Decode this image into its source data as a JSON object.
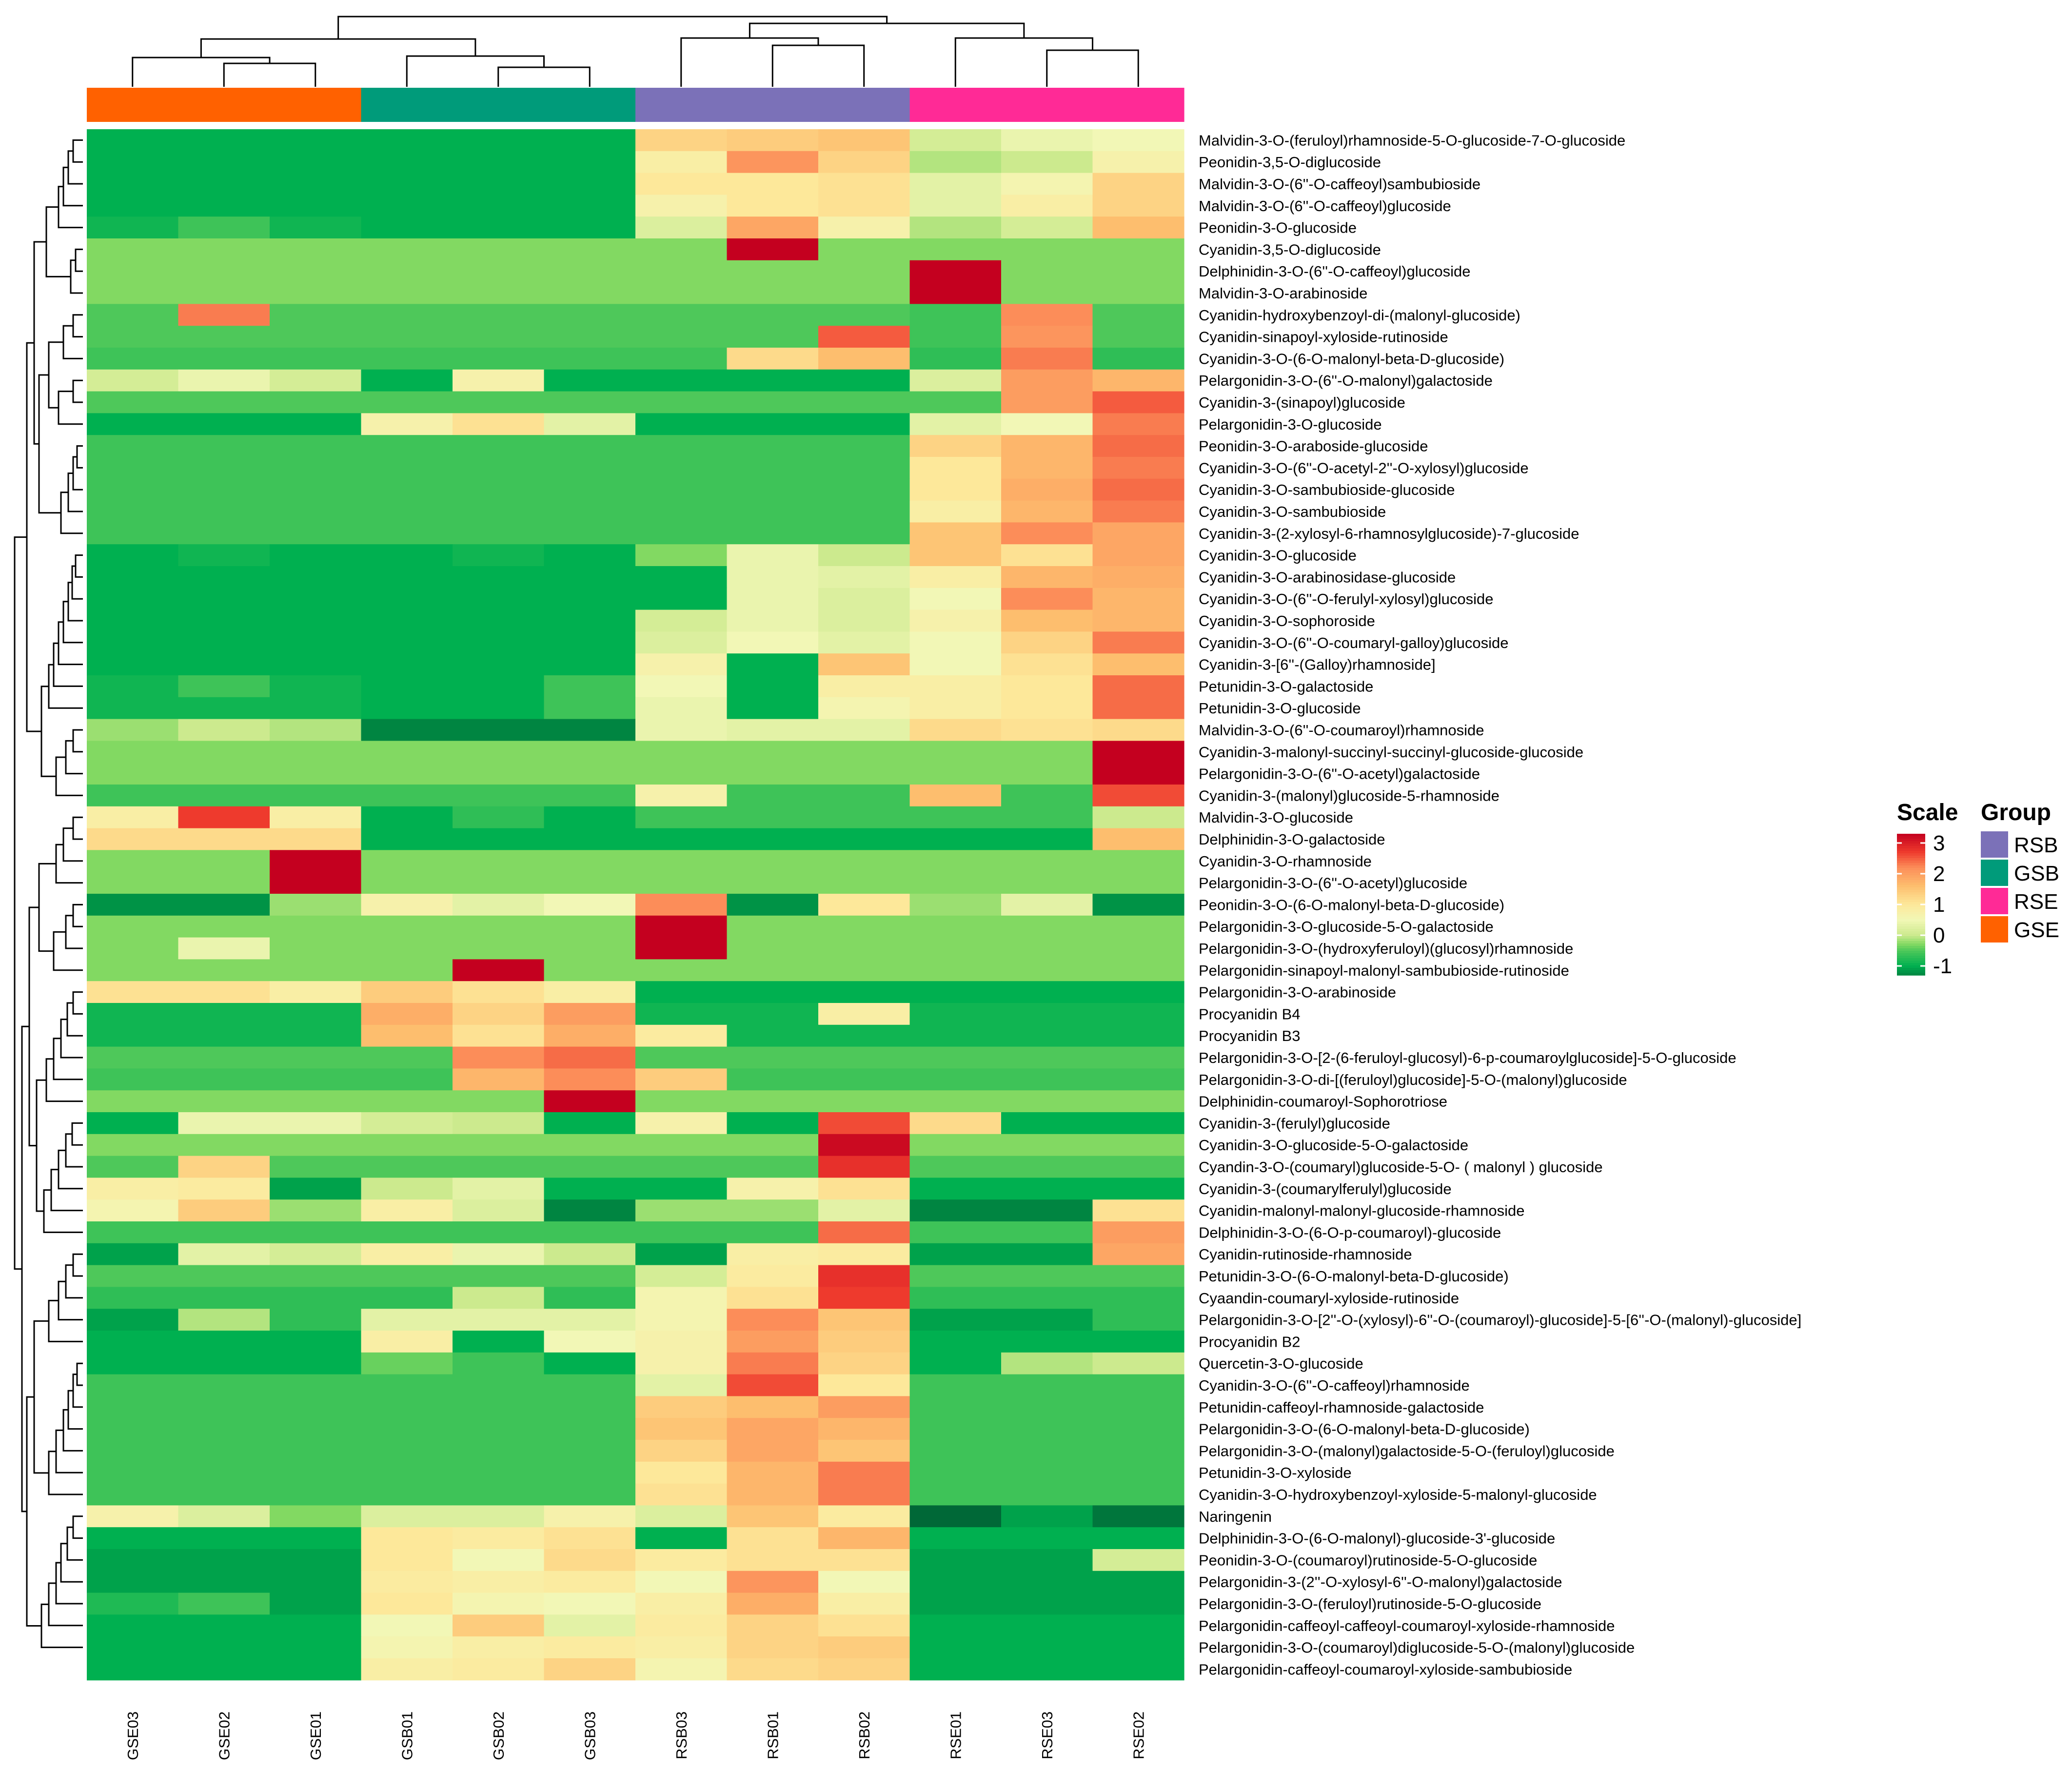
{
  "chart_data": {
    "type": "heatmap",
    "title": "",
    "columns": [
      "GSE03",
      "GSE02",
      "GSE01",
      "GSB01",
      "GSB02",
      "GSB03",
      "RSB03",
      "RSB01",
      "RSB02",
      "RSE01",
      "RSE03",
      "RSE02"
    ],
    "column_groups": [
      "GSE",
      "GSE",
      "GSE",
      "GSB",
      "GSB",
      "GSB",
      "RSB",
      "RSB",
      "RSB",
      "RSE",
      "RSE",
      "RSE"
    ],
    "rows": [
      "Malvidin-3-O-(feruloyl)rhamnoside-5-O-glucoside-7-O-glucoside",
      "Peonidin-3,5-O-diglucoside",
      "Malvidin-3-O-(6''-O-caffeoyl)sambubioside",
      "Malvidin-3-O-(6''-O-caffeoyl)glucoside",
      "Peonidin-3-O-glucoside",
      "Cyanidin-3,5-O-diglucoside",
      "Delphinidin-3-O-(6''-O-caffeoyl)glucoside",
      "Malvidin-3-O-arabinoside",
      "Cyanidin-hydroxybenzoyl-di-(malonyl-glucoside)",
      "Cyanidin-sinapoyl-xyloside-rutinoside",
      "Cyanidin-3-O-(6-O-malonyl-beta-D-glucoside)",
      "Pelargonidin-3-O-(6''-O-malonyl)galactoside",
      "Cyanidin-3-(sinapoyl)glucoside",
      "Pelargonidin-3-O-glucoside",
      "Peonidin-3-O-araboside-glucoside",
      "Cyanidin-3-O-(6''-O-acetyl-2''-O-xylosyl)glucoside",
      "Cyanidin-3-O-sambubioside-glucoside",
      "Cyanidin-3-O-sambubioside",
      "Cyanidin-3-(2-xylosyl-6-rhamnosylglucoside)-7-glucoside",
      "Cyanidin-3-O-glucoside",
      "Cyanidin-3-O-arabinosidase-glucoside",
      "Cyanidin-3-O-(6''-O-ferulyl-xylosyl)glucoside",
      "Cyanidin-3-O-sophoroside",
      "Cyanidin-3-O-(6''-O-coumaryl-galloy)glucoside",
      "Cyanidin-3-[6''-(Galloy)rhamnoside]",
      "Petunidin-3-O-galactoside",
      "Petunidin-3-O-glucoside",
      "Malvidin-3-O-(6''-O-coumaroyl)rhamnoside",
      "Cyanidin-3-malonyl-succinyl-succinyl-glucoside-glucoside",
      "Pelargonidin-3-O-(6''-O-acetyl)galactoside",
      "Cyanidin-3-(malonyl)glucoside-5-rhamnoside",
      "Malvidin-3-O-glucoside",
      "Delphinidin-3-O-galactoside",
      "Cyanidin-3-O-rhamnoside",
      "Pelargonidin-3-O-(6''-O-acetyl)glucoside",
      "Peonidin-3-O-(6-O-malonyl-beta-D-glucoside)",
      "Pelargonidin-3-O-glucoside-5-O-galactoside",
      "Pelargonidin-3-O-(hydroxyferuloyl)(glucosyl)rhamnoside",
      "Pelargonidin-sinapoyl-malonyl-sambubioside-rutinoside",
      "Pelargonidin-3-O-arabinoside",
      "Procyanidin B4",
      "Procyanidin B3",
      "Pelargonidin-3-O-[2-(6-feruloyl-glucosyl)-6-p-coumaroylglucoside]-5-O-glucoside",
      "Pelargonidin-3-O-di-[(feruloyl)glucoside]-5-O-(malonyl)glucoside",
      "Delphinidin-coumaroyl-Sophorotriose",
      "Cyanidin-3-(ferulyl)glucoside",
      "Cyanidin-3-O-glucoside-5-O-galactoside",
      "Cyandin-3-O-(coumaryl)glucoside-5-O- ( malonyl ) glucoside",
      "Cyanidin-3-(coumarylferulyl)glucoside",
      "Cyanidin-malonyl-malonyl-glucoside-rhamnoside",
      "Delphinidin-3-O-(6-O-p-coumaroyl)-glucoside",
      "Cyanidin-rutinoside-rhamnoside",
      "Petunidin-3-O-(6-O-malonyl-beta-D-glucoside)",
      "Cyaandin-coumaryl-xyloside-rutinoside",
      "Pelargonidin-3-O-[2''-O-(xylosyl)-6''-O-(coumaroyl)-glucoside]-5-[6''-O-(malonyl)-glucoside]",
      "Procyanidin B2",
      "Quercetin-3-O-glucoside",
      "Cyanidin-3-O-(6''-O-caffeoyl)rhamnoside",
      "Petunidin-caffeoyl-rhamnoside-galactoside",
      "Pelargonidin-3-O-(6-O-malonyl-beta-D-glucoside)",
      "Pelargonidin-3-O-(malonyl)galactoside-5-O-(feruloyl)glucoside",
      "Petunidin-3-O-xyloside",
      "Cyanidin-3-O-hydroxybenzoyl-xyloside-5-malonyl-glucoside",
      "Naringenin",
      "Delphinidin-3-O-(6-O-malonyl)-glucoside-3'-glucoside",
      "Peonidin-3-O-(coumaroyl)rutinoside-5-O-glucoside",
      "Pelargonidin-3-(2''-O-xylosyl-6''-O-malonyl)galactoside",
      "Pelargonidin-3-O-(feruloyl)rutinoside-5-O-glucoside",
      "Pelargonidin-caffeoyl-caffeoyl-coumaroyl-xyloside-rhamnoside",
      "Pelargonidin-3-O-(coumaroyl)diglucoside-5-O-(malonyl)glucoside",
      "Pelargonidin-caffeoyl-coumaroyl-xyloside-sambubioside"
    ],
    "values": [
      [
        -1.0,
        -1.0,
        -1.0,
        -1.0,
        -1.0,
        -1.0,
        1.3,
        1.4,
        1.5,
        0.1,
        0.4,
        0.5
      ],
      [
        -1.0,
        -1.0,
        -1.0,
        -1.0,
        -1.0,
        -1.0,
        0.8,
        2.1,
        1.3,
        -0.1,
        0.0,
        0.7
      ],
      [
        -1.0,
        -1.0,
        -1.0,
        -1.0,
        -1.0,
        -1.0,
        1.0,
        1.0,
        1.1,
        0.3,
        0.6,
        1.3
      ],
      [
        -1.0,
        -1.0,
        -1.0,
        -1.0,
        -1.0,
        -1.0,
        0.7,
        1.0,
        1.1,
        0.3,
        0.8,
        1.3
      ],
      [
        -0.9,
        -0.6,
        -0.9,
        -1.0,
        -1.0,
        -1.0,
        0.2,
        1.9,
        0.7,
        -0.1,
        0.1,
        1.6
      ],
      [
        -0.3,
        -0.3,
        -0.3,
        -0.3,
        -0.3,
        -0.3,
        -0.3,
        3.3,
        -0.3,
        -0.3,
        -0.3,
        -0.3
      ],
      [
        -0.3,
        -0.3,
        -0.3,
        -0.3,
        -0.3,
        -0.3,
        -0.3,
        -0.3,
        -0.3,
        3.3,
        -0.3,
        -0.3
      ],
      [
        -0.3,
        -0.3,
        -0.3,
        -0.3,
        -0.3,
        -0.3,
        -0.3,
        -0.3,
        -0.3,
        3.3,
        -0.3,
        -0.3
      ],
      [
        -0.5,
        2.3,
        -0.5,
        -0.5,
        -0.5,
        -0.5,
        -0.5,
        -0.5,
        -0.5,
        -0.6,
        2.2,
        -0.5
      ],
      [
        -0.5,
        -0.5,
        -0.5,
        -0.5,
        -0.5,
        -0.5,
        -0.5,
        -0.5,
        2.5,
        -0.6,
        2.1,
        -0.5
      ],
      [
        -0.6,
        -0.6,
        -0.6,
        -0.6,
        -0.6,
        -0.6,
        -0.6,
        1.2,
        1.6,
        -0.7,
        2.3,
        -0.7
      ],
      [
        0.1,
        0.4,
        0.1,
        -1.0,
        0.7,
        -1.0,
        -1.0,
        -1.0,
        -1.0,
        0.2,
        2.0,
        1.7
      ],
      [
        -0.5,
        -0.5,
        -0.5,
        -0.5,
        -0.5,
        -0.5,
        -0.5,
        -0.5,
        -0.5,
        -0.5,
        2.0,
        2.5
      ],
      [
        -1.0,
        -1.0,
        -1.0,
        0.7,
        1.1,
        0.3,
        -1.0,
        -1.0,
        -1.0,
        0.3,
        0.5,
        2.3
      ],
      [
        -0.6,
        -0.6,
        -0.6,
        -0.6,
        -0.6,
        -0.6,
        -0.6,
        -0.6,
        -0.6,
        1.3,
        1.7,
        2.4
      ],
      [
        -0.6,
        -0.6,
        -0.6,
        -0.6,
        -0.6,
        -0.6,
        -0.6,
        -0.6,
        -0.6,
        1.0,
        1.7,
        2.3
      ],
      [
        -0.6,
        -0.6,
        -0.6,
        -0.6,
        -0.6,
        -0.6,
        -0.6,
        -0.6,
        -0.6,
        1.0,
        1.8,
        2.4
      ],
      [
        -0.6,
        -0.6,
        -0.6,
        -0.6,
        -0.6,
        -0.6,
        -0.6,
        -0.6,
        -0.6,
        0.8,
        1.7,
        2.3
      ],
      [
        -0.6,
        -0.6,
        -0.6,
        -0.6,
        -0.6,
        -0.6,
        -0.6,
        -0.6,
        -0.6,
        1.5,
        2.2,
        1.9
      ],
      [
        -1.0,
        -0.9,
        -1.0,
        -1.0,
        -0.9,
        -1.0,
        -0.3,
        0.4,
        0.0,
        1.5,
        1.1,
        1.9
      ],
      [
        -1.0,
        -1.0,
        -1.0,
        -1.0,
        -1.0,
        -1.0,
        -1.0,
        0.4,
        0.3,
        0.8,
        1.7,
        1.8
      ],
      [
        -1.0,
        -1.0,
        -1.0,
        -1.0,
        -1.0,
        -1.0,
        -1.0,
        0.4,
        0.2,
        0.5,
        2.2,
        1.7
      ],
      [
        -1.0,
        -1.0,
        -1.0,
        -1.0,
        -1.0,
        -1.0,
        0.1,
        0.4,
        0.2,
        0.7,
        1.6,
        1.7
      ],
      [
        -1.0,
        -1.0,
        -1.0,
        -1.0,
        -1.0,
        -1.0,
        0.2,
        0.5,
        0.3,
        0.5,
        1.3,
        2.3
      ],
      [
        -1.0,
        -1.0,
        -1.0,
        -1.0,
        -1.0,
        -1.0,
        0.7,
        -1.0,
        1.5,
        0.5,
        1.1,
        1.6
      ],
      [
        -0.9,
        -0.6,
        -0.9,
        -1.0,
        -1.0,
        -0.6,
        0.5,
        -1.0,
        0.8,
        0.8,
        1.0,
        2.4
      ],
      [
        -0.9,
        -0.9,
        -0.9,
        -1.0,
        -1.0,
        -0.6,
        0.4,
        -1.0,
        0.6,
        0.8,
        1.0,
        2.4
      ],
      [
        -0.2,
        0.0,
        -0.1,
        -1.3,
        -1.3,
        -1.3,
        0.4,
        0.3,
        0.3,
        1.2,
        1.1,
        1.2
      ],
      [
        -0.3,
        -0.3,
        -0.3,
        -0.3,
        -0.3,
        -0.3,
        -0.3,
        -0.3,
        -0.3,
        -0.3,
        -0.3,
        3.3
      ],
      [
        -0.3,
        -0.3,
        -0.3,
        -0.3,
        -0.3,
        -0.3,
        -0.3,
        -0.3,
        -0.3,
        -0.3,
        -0.3,
        3.3
      ],
      [
        -0.6,
        -0.6,
        -0.6,
        -0.6,
        -0.6,
        -0.6,
        0.7,
        -0.6,
        -0.6,
        1.6,
        -0.6,
        2.6
      ],
      [
        0.8,
        2.7,
        0.8,
        -1.0,
        -0.7,
        -1.0,
        -0.6,
        -0.6,
        -0.6,
        -0.6,
        -0.6,
        0.0
      ],
      [
        1.2,
        1.2,
        1.2,
        -1.0,
        -1.0,
        -1.0,
        -1.0,
        -1.0,
        -1.0,
        -1.0,
        -1.0,
        1.6
      ],
      [
        -0.3,
        -0.3,
        3.3,
        -0.3,
        -0.3,
        -0.3,
        -0.3,
        -0.3,
        -0.3,
        -0.3,
        -0.3,
        -0.3
      ],
      [
        -0.3,
        -0.3,
        3.3,
        -0.3,
        -0.3,
        -0.3,
        -0.3,
        -0.3,
        -0.3,
        -0.3,
        -0.3,
        -0.3
      ],
      [
        -1.2,
        -1.2,
        -0.2,
        0.7,
        0.3,
        0.5,
        2.2,
        -1.2,
        1.0,
        -0.2,
        0.3,
        -1.2
      ],
      [
        -0.3,
        -0.3,
        -0.3,
        -0.3,
        -0.3,
        -0.3,
        3.3,
        -0.3,
        -0.3,
        -0.3,
        -0.3,
        -0.3
      ],
      [
        -0.3,
        0.4,
        -0.3,
        -0.3,
        -0.3,
        -0.3,
        3.3,
        -0.3,
        -0.3,
        -0.3,
        -0.3,
        -0.3
      ],
      [
        -0.3,
        -0.3,
        -0.3,
        -0.3,
        3.3,
        -0.3,
        -0.3,
        -0.3,
        -0.3,
        -0.3,
        -0.3,
        -0.3
      ],
      [
        1.1,
        1.1,
        0.8,
        1.4,
        1.1,
        0.8,
        -1.0,
        -1.0,
        -1.0,
        -1.0,
        -1.0,
        -1.0
      ],
      [
        -0.9,
        -0.9,
        -0.9,
        1.8,
        1.3,
        2.0,
        -0.9,
        -0.9,
        0.8,
        -0.9,
        -0.9,
        -0.9
      ],
      [
        -0.9,
        -0.9,
        -0.9,
        1.6,
        1.1,
        1.8,
        0.9,
        -0.9,
        -0.9,
        -0.9,
        -0.9,
        -0.9
      ],
      [
        -0.5,
        -0.5,
        -0.5,
        -0.5,
        2.2,
        2.4,
        -0.5,
        -0.5,
        -0.5,
        -0.5,
        -0.5,
        -0.5
      ],
      [
        -0.6,
        -0.6,
        -0.6,
        -0.6,
        1.7,
        2.2,
        1.4,
        -0.6,
        -0.6,
        -0.6,
        -0.6,
        -0.6
      ],
      [
        -0.3,
        -0.3,
        -0.3,
        -0.3,
        -0.3,
        3.3,
        -0.3,
        -0.3,
        -0.3,
        -0.3,
        -0.3,
        -0.3
      ],
      [
        -1.0,
        0.4,
        0.4,
        0.1,
        0.0,
        -1.0,
        0.7,
        -1.0,
        2.6,
        1.2,
        -1.0,
        -1.0
      ],
      [
        -0.3,
        -0.3,
        -0.3,
        -0.3,
        -0.3,
        -0.3,
        -0.3,
        -0.3,
        3.2,
        -0.3,
        -0.3,
        -0.3
      ],
      [
        -0.5,
        1.3,
        -0.5,
        -0.5,
        -0.5,
        -0.5,
        -0.5,
        -0.5,
        2.8,
        -0.5,
        -0.5,
        -0.5
      ],
      [
        0.8,
        0.9,
        -1.1,
        0.0,
        0.3,
        -1.0,
        -1.0,
        0.7,
        1.1,
        -1.0,
        -1.0,
        -1.0
      ],
      [
        0.6,
        1.4,
        -0.2,
        0.8,
        0.2,
        -1.3,
        -0.2,
        -0.2,
        0.3,
        -1.3,
        -1.3,
        1.1
      ],
      [
        -0.6,
        -0.6,
        -0.6,
        -0.6,
        -0.6,
        -0.6,
        -0.6,
        -0.6,
        2.4,
        -0.6,
        -0.6,
        2.0
      ],
      [
        -1.1,
        0.3,
        0.1,
        0.8,
        0.4,
        0.0,
        -1.1,
        0.8,
        0.9,
        -1.1,
        -1.1,
        1.9
      ],
      [
        -0.5,
        -0.5,
        -0.5,
        -0.5,
        -0.5,
        -0.5,
        0.1,
        0.9,
        2.8,
        -0.5,
        -0.5,
        -0.5
      ],
      [
        -0.7,
        -0.7,
        -0.7,
        -0.7,
        0.0,
        -0.7,
        0.6,
        1.1,
        2.7,
        -0.7,
        -0.7,
        -0.7
      ],
      [
        -1.1,
        -0.1,
        -0.7,
        0.3,
        0.3,
        0.3,
        0.6,
        2.2,
        1.5,
        -1.1,
        -1.1,
        -0.7
      ],
      [
        -1.0,
        -1.0,
        -1.0,
        0.8,
        -1.0,
        0.5,
        0.7,
        2.0,
        1.4,
        -1.0,
        -1.0,
        -1.0
      ],
      [
        -1.0,
        -1.0,
        -1.0,
        -0.4,
        -0.6,
        -1.0,
        0.7,
        2.3,
        1.3,
        -1.0,
        -0.1,
        0.0
      ],
      [
        -0.6,
        -0.6,
        -0.6,
        -0.6,
        -0.6,
        -0.6,
        0.3,
        2.6,
        1.0,
        -0.6,
        -0.6,
        -0.6
      ],
      [
        -0.6,
        -0.6,
        -0.6,
        -0.6,
        -0.6,
        -0.6,
        1.4,
        1.6,
        2.0,
        -0.6,
        -0.6,
        -0.6
      ],
      [
        -0.6,
        -0.6,
        -0.6,
        -0.6,
        -0.6,
        -0.6,
        1.5,
        1.9,
        1.7,
        -0.6,
        -0.6,
        -0.6
      ],
      [
        -0.6,
        -0.6,
        -0.6,
        -0.6,
        -0.6,
        -0.6,
        1.3,
        1.9,
        1.5,
        -0.6,
        -0.6,
        -0.6
      ],
      [
        -0.6,
        -0.6,
        -0.6,
        -0.6,
        -0.6,
        -0.6,
        1.0,
        1.7,
        2.3,
        -0.6,
        -0.6,
        -0.6
      ],
      [
        -0.6,
        -0.6,
        -0.6,
        -0.6,
        -0.6,
        -0.6,
        1.1,
        1.7,
        2.3,
        -0.6,
        -0.6,
        -0.6
      ],
      [
        0.7,
        0.2,
        -0.3,
        0.2,
        0.2,
        0.7,
        0.2,
        1.5,
        0.9,
        -1.5,
        -1.1,
        -1.4
      ],
      [
        -1.0,
        -1.0,
        -1.0,
        1.0,
        0.9,
        1.1,
        -1.0,
        1.1,
        1.7,
        -1.0,
        -1.0,
        -1.0
      ],
      [
        -1.1,
        -1.1,
        -1.1,
        1.0,
        0.5,
        1.2,
        0.9,
        1.1,
        1.1,
        -1.1,
        -1.1,
        0.1
      ],
      [
        -1.1,
        -1.1,
        -1.1,
        0.9,
        0.8,
        0.9,
        0.5,
        2.1,
        0.5,
        -1.1,
        -1.1,
        -1.1
      ],
      [
        -0.8,
        -0.6,
        -1.1,
        1.0,
        0.6,
        0.5,
        0.8,
        1.8,
        0.8,
        -1.1,
        -1.1,
        -1.1
      ],
      [
        -1.0,
        -1.0,
        -1.0,
        0.5,
        1.4,
        0.3,
        0.9,
        1.3,
        1.1,
        -1.0,
        -1.0,
        -1.0
      ],
      [
        -1.0,
        -1.0,
        -1.0,
        0.6,
        0.8,
        0.9,
        0.8,
        1.3,
        1.4,
        -1.0,
        -1.0,
        -1.0
      ],
      [
        -1.0,
        -1.0,
        -1.0,
        0.8,
        0.9,
        1.3,
        0.6,
        1.2,
        1.3,
        -1.0,
        -1.0,
        -1.0
      ]
    ],
    "color_scale": {
      "stops": [
        {
          "value": -1.5,
          "color": "#006837"
        },
        {
          "value": -1.0,
          "color": "#00b050"
        },
        {
          "value": -0.5,
          "color": "#4ec85a"
        },
        {
          "value": -0.3,
          "color": "#82d962"
        },
        {
          "value": 0.0,
          "color": "#ccea8e"
        },
        {
          "value": 0.5,
          "color": "#f2f7b6"
        },
        {
          "value": 1.0,
          "color": "#fde89a"
        },
        {
          "value": 1.6,
          "color": "#fdbe6e"
        },
        {
          "value": 2.2,
          "color": "#fc8d59"
        },
        {
          "value": 2.7,
          "color": "#ee3a2d"
        },
        {
          "value": 3.3,
          "color": "#c4001f"
        }
      ],
      "ticks": [
        3,
        2,
        1,
        0,
        -1
      ]
    },
    "legend": {
      "scale_title": "Scale",
      "group_title": "Group",
      "groups": [
        {
          "name": "RSB",
          "color": "#7b71b8"
        },
        {
          "name": "GSB",
          "color": "#009b7a"
        },
        {
          "name": "RSE",
          "color": "#ff2a96"
        },
        {
          "name": "GSE",
          "color": "#ff6100"
        }
      ]
    }
  }
}
